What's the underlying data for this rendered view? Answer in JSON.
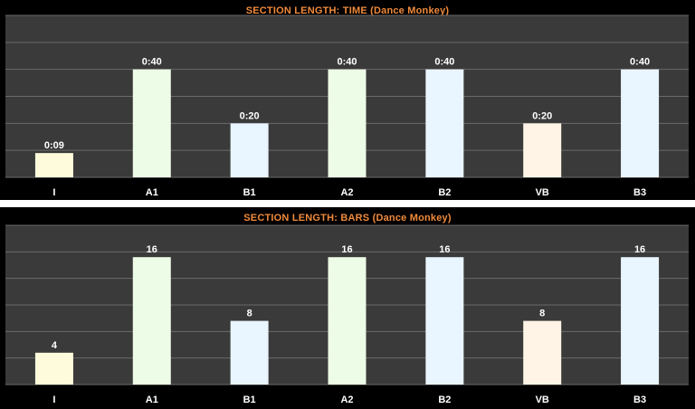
{
  "chart_data": [
    {
      "type": "bar",
      "title": "SECTION LENGTH: TIME (Dance Monkey)",
      "categories": [
        "I",
        "A1",
        "B1",
        "A2",
        "B2",
        "VB",
        "B3"
      ],
      "values": [
        9,
        40,
        20,
        40,
        40,
        20,
        40
      ],
      "value_labels": [
        "0:09",
        "0:40",
        "0:20",
        "0:40",
        "0:40",
        "0:20",
        "0:40"
      ],
      "ylim": [
        0,
        60
      ],
      "grid": true,
      "xlabel": "",
      "ylabel": ""
    },
    {
      "type": "bar",
      "title": "SECTION LENGTH: BARS (Dance Monkey)",
      "categories": [
        "I",
        "A1",
        "B1",
        "A2",
        "B2",
        "VB",
        "B3"
      ],
      "values": [
        4,
        16,
        8,
        16,
        16,
        8,
        16
      ],
      "value_labels": [
        "4",
        "16",
        "8",
        "16",
        "16",
        "8",
        "16"
      ],
      "ylim": [
        0,
        20
      ],
      "grid": true,
      "xlabel": "",
      "ylabel": ""
    }
  ],
  "colors": {
    "panel_background": "#000000",
    "plot_background": "#3a3a3a",
    "gridline": "#6a6a6a",
    "title": "#f08a3c",
    "label": "#ffffff",
    "bar_colors": [
      "#fdfbdb",
      "#edfce6",
      "#e9f5ff",
      "#edfce6",
      "#e9f5ff",
      "#fff4e6",
      "#e9f5ff"
    ]
  }
}
